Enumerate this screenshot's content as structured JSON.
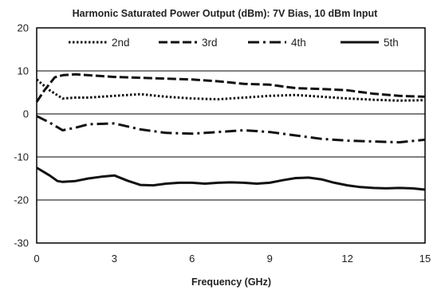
{
  "chart_data": {
    "type": "line",
    "title": "Harmonic Saturated Power Output (dBm): 7V Bias, 10 dBm Input",
    "xlabel": "Frequency (GHz)",
    "ylabel": "",
    "xlim": [
      0,
      15
    ],
    "ylim": [
      -30,
      20
    ],
    "xticks": [
      0,
      3,
      6,
      9,
      12,
      15
    ],
    "yticks": [
      20,
      10,
      0,
      -10,
      -20,
      -30
    ],
    "xtick_labels": [
      "0",
      "3",
      "6",
      "9",
      "12",
      "15"
    ],
    "ytick_labels": [
      "20",
      "10",
      "0",
      "-10",
      "-20",
      "-30"
    ],
    "grid": "horizontal",
    "legend_position": "top",
    "series": [
      {
        "name": "2nd",
        "style": "dotted",
        "color": "#111111",
        "x": [
          0,
          0.5,
          1,
          1.5,
          2,
          3,
          4,
          5,
          6,
          7,
          8,
          9,
          10,
          11,
          12,
          13,
          14,
          15
        ],
        "y": [
          8,
          5.5,
          3.6,
          3.8,
          3.8,
          4.2,
          4.6,
          4,
          3.6,
          3.4,
          3.8,
          4.2,
          4.4,
          4,
          3.6,
          3.3,
          3.1,
          3.2
        ]
      },
      {
        "name": "3rd",
        "style": "dashed",
        "color": "#111111",
        "x": [
          0,
          0.3,
          0.7,
          1,
          1.5,
          2,
          3,
          4,
          5,
          6,
          7,
          8,
          9,
          10,
          11,
          12,
          13,
          14,
          15
        ],
        "y": [
          2.8,
          5.5,
          8.5,
          9,
          9.2,
          9,
          8.6,
          8.4,
          8.2,
          8,
          7.6,
          7,
          6.8,
          6,
          5.8,
          5.5,
          4.7,
          4.2,
          4
        ]
      },
      {
        "name": "4th",
        "style": "dash-dot",
        "color": "#111111",
        "x": [
          0,
          0.5,
          1,
          1.5,
          2,
          3,
          4,
          5,
          6,
          7,
          8,
          9,
          10,
          11,
          12,
          13,
          14,
          15
        ],
        "y": [
          -0.5,
          -2,
          -3.8,
          -3.2,
          -2.4,
          -2.2,
          -3.6,
          -4.4,
          -4.6,
          -4.2,
          -3.8,
          -4.2,
          -5,
          -5.8,
          -6.2,
          -6.4,
          -6.6,
          -6
        ]
      },
      {
        "name": "5th",
        "style": "solid",
        "color": "#111111",
        "x": [
          0,
          0.5,
          0.8,
          1,
          1.5,
          2,
          2.5,
          3,
          3.5,
          4,
          4.5,
          5,
          5.5,
          6,
          6.5,
          7,
          7.5,
          8,
          8.5,
          9,
          9.5,
          10,
          10.5,
          11,
          11.5,
          12,
          12.5,
          13,
          13.5,
          14,
          14.5,
          15
        ],
        "y": [
          -12.5,
          -14.3,
          -15.6,
          -15.8,
          -15.6,
          -15,
          -14.6,
          -14.3,
          -15.5,
          -16.5,
          -16.6,
          -16.2,
          -16,
          -16,
          -16.2,
          -16,
          -15.9,
          -16,
          -16.2,
          -16,
          -15.4,
          -14.9,
          -14.8,
          -15.2,
          -16,
          -16.6,
          -17,
          -17.2,
          -17.3,
          -17.2,
          -17.3,
          -17.6
        ]
      }
    ]
  }
}
